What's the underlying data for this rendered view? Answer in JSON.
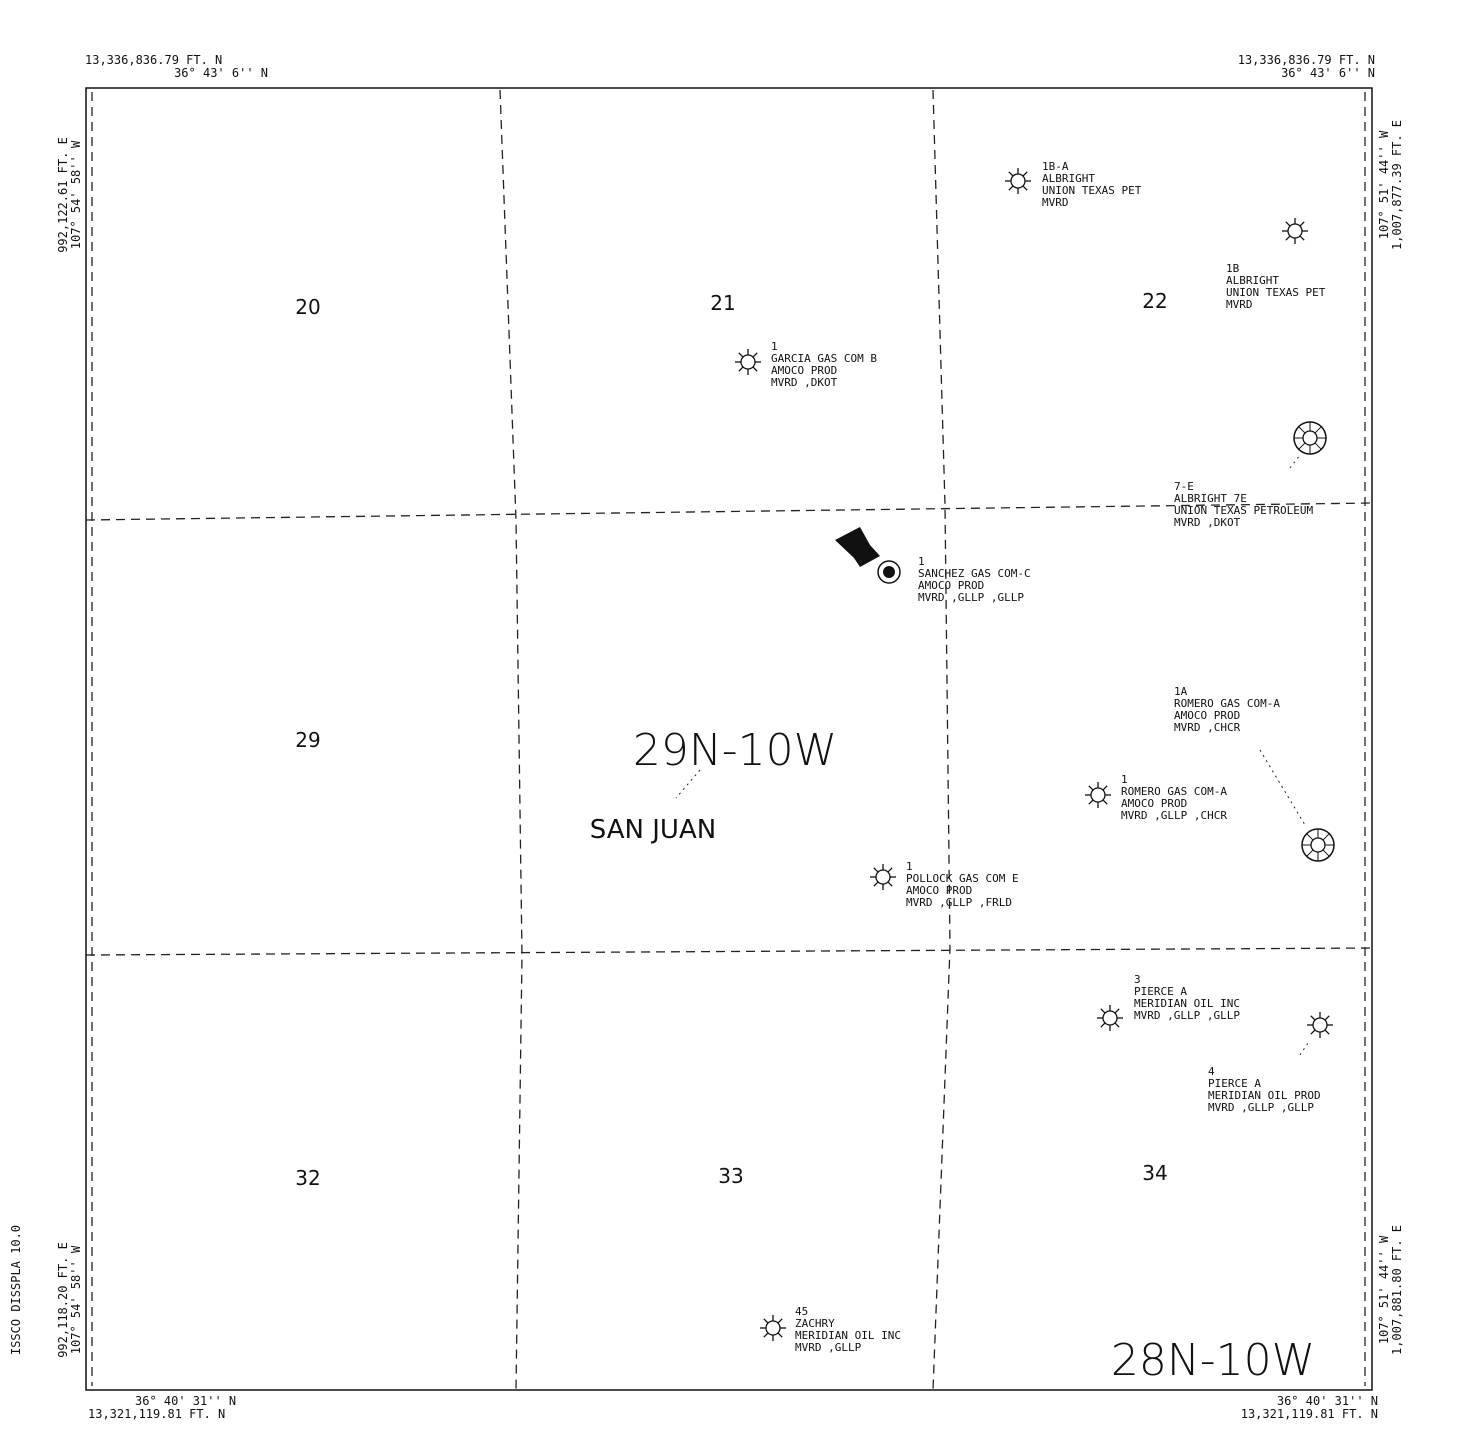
{
  "corners": {
    "top_left": [
      "13,336,836.79 FT. N",
      "36° 43' 6'' N"
    ],
    "top_right": [
      "13,336,836.79 FT. N",
      "36° 43' 6'' N"
    ],
    "bottom_left": [
      "36° 40' 31'' N",
      "13,321,119.81 FT. N"
    ],
    "bottom_right": [
      "36° 40' 31'' N",
      "13,321,119.81 FT. N"
    ]
  },
  "sides": {
    "left_top": [
      "992,122.61 FT. E",
      "107° 54' 58'' W"
    ],
    "left_bottom": [
      "992,118.20 FT. E",
      "107° 54' 58'' W"
    ],
    "right_top": [
      "107° 51' 44'' W",
      "1,007,877.39 FT. E"
    ],
    "right_bottom": [
      "107° 51' 44'' W",
      "1,007,881.80 FT. E"
    ]
  },
  "software": "ISSCO DISSPLA 10.0",
  "sections": [
    "20",
    "21",
    "22",
    "29",
    "32",
    "33",
    "34"
  ],
  "townships": [
    "29N-10W",
    "SAN JUAN",
    "28N-10W"
  ],
  "wells": [
    {
      "label": [
        "1B-A",
        "ALBRIGHT",
        "UNION TEXAS PET",
        "MVRD"
      ]
    },
    {
      "label": [
        "1B",
        "ALBRIGHT",
        "UNION TEXAS PET",
        "MVRD"
      ]
    },
    {
      "label": [
        "1",
        "GARCIA GAS COM B",
        "AMOCO PROD",
        "MVRD ,DKOT"
      ]
    },
    {
      "label": [
        "7-E",
        "ALBRIGHT 7E",
        "UNION TEXAS PETROLEUM",
        "MVRD ,DKOT"
      ]
    },
    {
      "label": [
        "1",
        "SANCHEZ GAS COM-C",
        "AMOCO PROD",
        "MVRD ,GLLP ,GLLP"
      ]
    },
    {
      "label": [
        "1A",
        "ROMERO GAS COM-A",
        "AMOCO PROD",
        "MVRD ,CHCR"
      ]
    },
    {
      "label": [
        "1",
        "ROMERO GAS COM-A",
        "AMOCO PROD",
        "MVRD ,GLLP ,CHCR"
      ]
    },
    {
      "label": [
        "1",
        "POLLOCK GAS COM E",
        "AMOCO PROD",
        "MVRD ,GLLP ,FRLD"
      ]
    },
    {
      "label": [
        "3",
        "PIERCE A",
        "MERIDIAN OIL INC",
        "MVRD ,GLLP ,GLLP"
      ]
    },
    {
      "label": [
        "4",
        "PIERCE A",
        "MERIDIAN OIL PROD",
        "MVRD ,GLLP ,GLLP"
      ]
    },
    {
      "label": [
        "45",
        "ZACHRY",
        "MERIDIAN OIL INC",
        "MVRD ,GLLP"
      ]
    }
  ]
}
